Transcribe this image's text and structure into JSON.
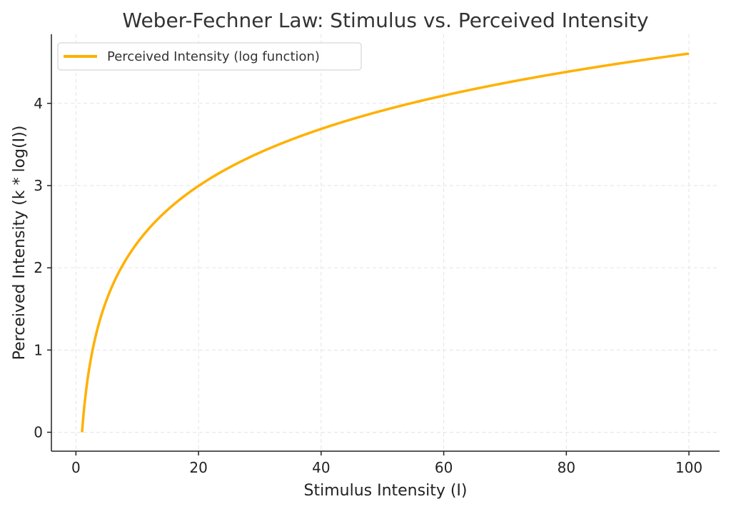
{
  "chart_data": {
    "type": "line",
    "title": "Weber-Fechner Law: Stimulus vs. Perceived Intensity",
    "xlabel": "Stimulus Intensity (I)",
    "ylabel": "Perceived Intensity (k * log(I))",
    "xlim": [
      -4,
      105
    ],
    "ylim": [
      -0.23,
      4.84
    ],
    "xticks": [
      0,
      20,
      40,
      60,
      80,
      100
    ],
    "yticks": [
      0,
      1,
      2,
      3,
      4
    ],
    "grid": true,
    "legend_position": "top-left",
    "series": [
      {
        "name": "Perceived Intensity (log function)",
        "color": "#ffb000",
        "x": [
          1,
          1.5,
          2,
          3,
          4,
          5,
          6,
          7,
          8,
          9,
          10,
          12,
          14,
          16,
          18,
          20,
          25,
          30,
          35,
          40,
          45,
          50,
          55,
          60,
          65,
          70,
          75,
          80,
          85,
          90,
          95,
          100
        ],
        "y": [
          0,
          0.405,
          0.693,
          1.099,
          1.386,
          1.609,
          1.792,
          1.946,
          2.079,
          2.197,
          2.303,
          2.485,
          2.639,
          2.773,
          2.89,
          2.996,
          3.219,
          3.401,
          3.555,
          3.689,
          3.807,
          3.912,
          4.007,
          4.094,
          4.174,
          4.248,
          4.317,
          4.382,
          4.443,
          4.5,
          4.554,
          4.605
        ]
      }
    ]
  }
}
